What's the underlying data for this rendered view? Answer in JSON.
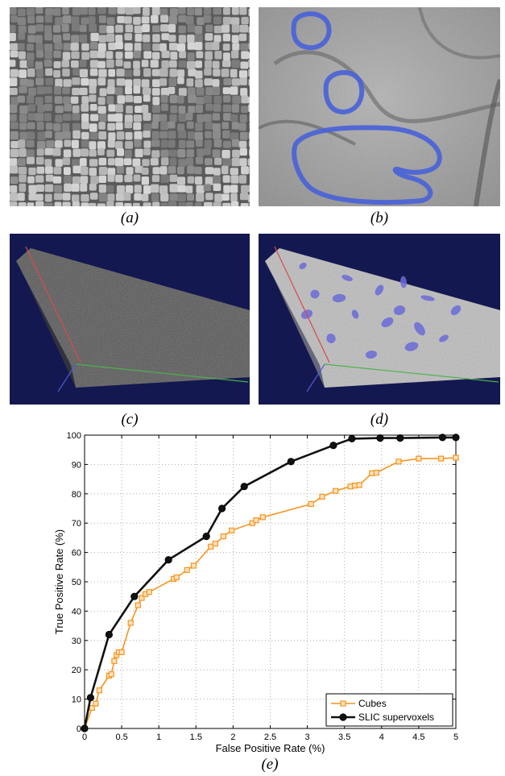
{
  "figure": {
    "captions": {
      "a": "(a)",
      "b": "(b)",
      "c": "(c)",
      "d": "(d)",
      "e": "(e)"
    }
  },
  "colors": {
    "em_gray": "#8a8a8a",
    "overlay_blue": "#4a63d8",
    "volume_background": "#141850",
    "cubes_orange": "#f7941d",
    "slic_black": "#111111"
  },
  "chart_data": {
    "type": "line",
    "xlabel": "False Positive Rate (%)",
    "ylabel": "True Positive Rate (%)",
    "xlim": [
      0,
      5
    ],
    "ylim": [
      0,
      100
    ],
    "xticks": [
      "0",
      "0.5",
      "1",
      "1.5",
      "2",
      "2.5",
      "3",
      "3.5",
      "4",
      "4.5",
      "5"
    ],
    "yticks": [
      "0",
      "10",
      "20",
      "30",
      "40",
      "50",
      "60",
      "70",
      "80",
      "90",
      "100"
    ],
    "grid": true,
    "legend_position": "bottom-right",
    "series": [
      {
        "name": "Cubes",
        "color": "#f7941d",
        "marker": "square",
        "x": [
          0,
          0.1,
          0.15,
          0.2,
          0.33,
          0.36,
          0.4,
          0.43,
          0.46,
          0.5,
          0.62,
          0.72,
          0.77,
          0.82,
          0.87,
          1.2,
          1.24,
          1.38,
          1.47,
          1.7,
          1.76,
          1.87,
          1.98,
          2.26,
          2.31,
          2.4,
          3.05,
          3.2,
          3.38,
          3.58,
          3.64,
          3.7,
          3.87,
          3.93,
          4.23,
          4.5,
          4.8,
          5.0
        ],
        "y": [
          0,
          7,
          8.5,
          13,
          18,
          18.5,
          23,
          25,
          26,
          26,
          36,
          42,
          44.5,
          45.8,
          46.5,
          51,
          51.5,
          54,
          55.5,
          62,
          63,
          65.5,
          67.5,
          70,
          71,
          72,
          76.5,
          79,
          81,
          82.5,
          82.8,
          83,
          87,
          87.2,
          91,
          92,
          92,
          92.3
        ]
      },
      {
        "name": "SLIC supervoxels",
        "color": "#111111",
        "marker": "circle",
        "x": [
          0,
          0.08,
          0.33,
          0.67,
          1.13,
          1.64,
          1.85,
          2.15,
          2.78,
          3.35,
          3.6,
          3.98,
          4.25,
          4.82,
          5.0
        ],
        "y": [
          0,
          10.5,
          32,
          45,
          57.5,
          65.5,
          75,
          82.5,
          91,
          96.5,
          98.8,
          99,
          99,
          99.2,
          99.2
        ]
      }
    ]
  }
}
